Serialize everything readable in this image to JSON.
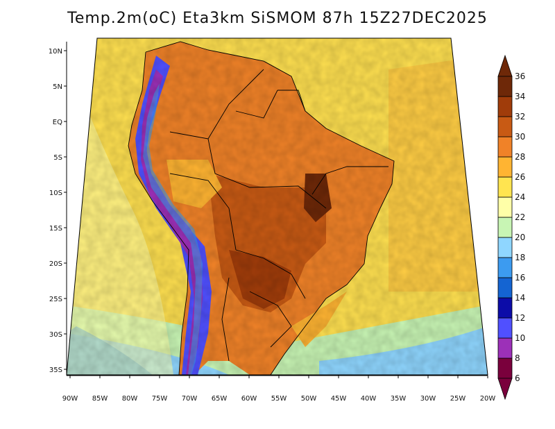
{
  "title": "Temp.2m(oC) Eta3km SiSMOM 87h 15Z27DEC2025",
  "lat_labels": [
    "10N",
    "5N",
    "EQ",
    "5S",
    "10S",
    "15S",
    "20S",
    "25S",
    "30S",
    "35S"
  ],
  "lon_labels": [
    "90W",
    "85W",
    "80W",
    "75W",
    "70W",
    "65W",
    "60W",
    "55W",
    "50W",
    "45W",
    "40W",
    "35W",
    "30W",
    "25W",
    "20W"
  ],
  "colorbar": {
    "bins": [
      {
        "color": "#7a003c"
      },
      {
        "color": "#9c30b8"
      },
      {
        "color": "#5050ff"
      },
      {
        "color": "#0c0ca8"
      },
      {
        "color": "#1464d2"
      },
      {
        "color": "#3c9bf0"
      },
      {
        "color": "#8fd6ff"
      },
      {
        "color": "#c8f5b4"
      },
      {
        "color": "#ffffa8"
      },
      {
        "color": "#ffe450"
      },
      {
        "color": "#ffb432"
      },
      {
        "color": "#f08228"
      },
      {
        "color": "#c85a14"
      },
      {
        "color": "#a03c0a"
      },
      {
        "color": "#6e2808"
      }
    ],
    "labels": [
      "6",
      "8",
      "10",
      "12",
      "14",
      "16",
      "18",
      "20",
      "22",
      "24",
      "26",
      "28",
      "30",
      "32",
      "34",
      "36"
    ]
  }
}
